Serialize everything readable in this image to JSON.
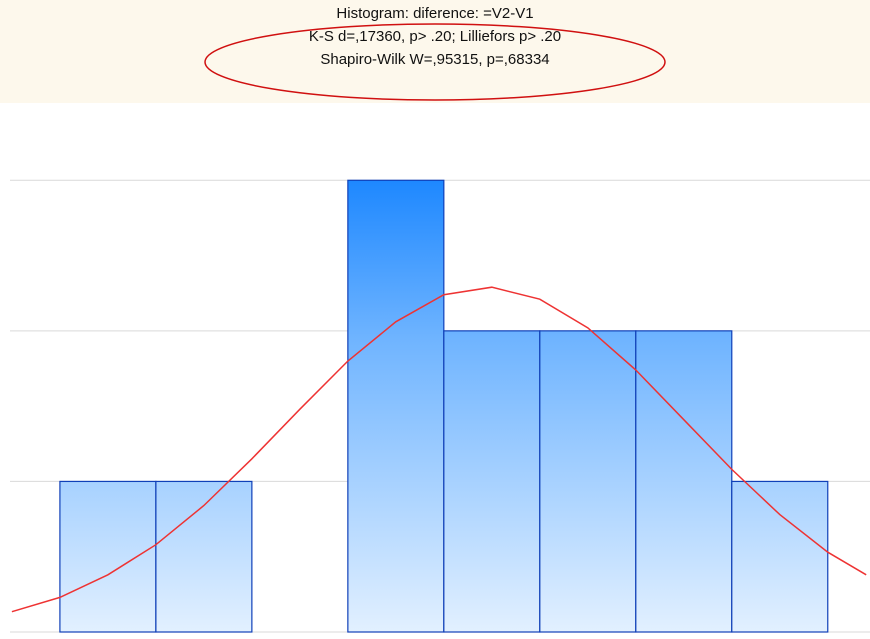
{
  "chart_data": {
    "type": "bar",
    "title": "Histogram: diference: =V2-V1",
    "subtitle": [
      "K-S d=,17360, p> .20; Lilliefors p> .20",
      "Shapiro-Wilk W=,95315, p=,68334"
    ],
    "categories": [
      null,
      null,
      null,
      null,
      null,
      null,
      null,
      null
    ],
    "values": [
      1,
      1,
      0,
      3,
      2,
      2,
      2,
      1
    ],
    "color": "#1e88ff",
    "xlim": [
      -0.52,
      8.44
    ],
    "ylim": [
      0,
      3.5
    ],
    "yticks": [
      0,
      1,
      2,
      3
    ],
    "grid": true,
    "curve": {
      "color": "#ee3333",
      "x": [
        -0.5,
        0,
        0.5,
        1,
        1.5,
        2,
        2.5,
        3,
        3.5,
        4,
        4.5,
        5,
        5.5,
        6,
        6.5,
        7,
        7.5,
        8,
        8.4
      ],
      "values": [
        0.135,
        0.23,
        0.38,
        0.58,
        0.84,
        1.15,
        1.48,
        1.8,
        2.06,
        2.24,
        2.29,
        2.21,
        2.02,
        1.74,
        1.41,
        1.08,
        0.78,
        0.53,
        0.38
      ]
    }
  }
}
